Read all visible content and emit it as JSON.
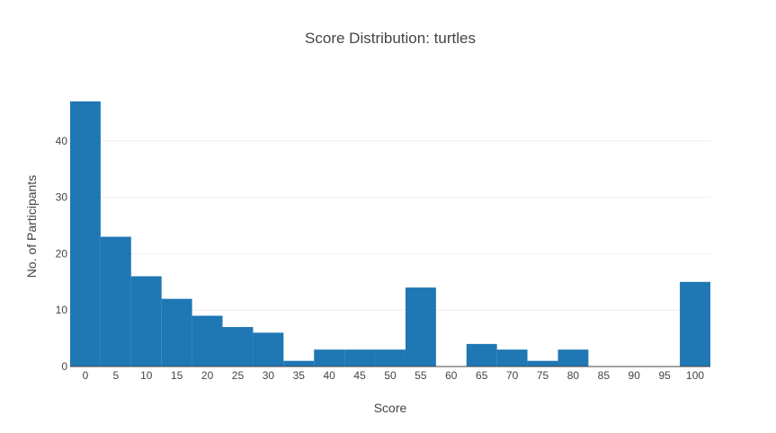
{
  "chart_data": {
    "type": "bar",
    "title": "Score Distribution: turtles",
    "xlabel": "Score",
    "ylabel": "No. of Participants",
    "categories": [
      0,
      5,
      10,
      15,
      20,
      25,
      30,
      35,
      40,
      45,
      50,
      55,
      60,
      65,
      70,
      75,
      80,
      85,
      90,
      95,
      100
    ],
    "values": [
      47,
      23,
      16,
      12,
      9,
      7,
      6,
      1,
      3,
      3,
      3,
      14,
      0,
      4,
      3,
      1,
      3,
      0,
      0,
      0,
      15
    ],
    "x_ticks": [
      "0",
      "5",
      "10",
      "15",
      "20",
      "25",
      "30",
      "35",
      "40",
      "45",
      "50",
      "55",
      "60",
      "65",
      "70",
      "75",
      "80",
      "85",
      "90",
      "95",
      "100"
    ],
    "y_ticks": [
      "0",
      "10",
      "20",
      "30",
      "40"
    ],
    "ylim": [
      0,
      47
    ],
    "grid": true,
    "bar_color": "#1f77b4"
  }
}
